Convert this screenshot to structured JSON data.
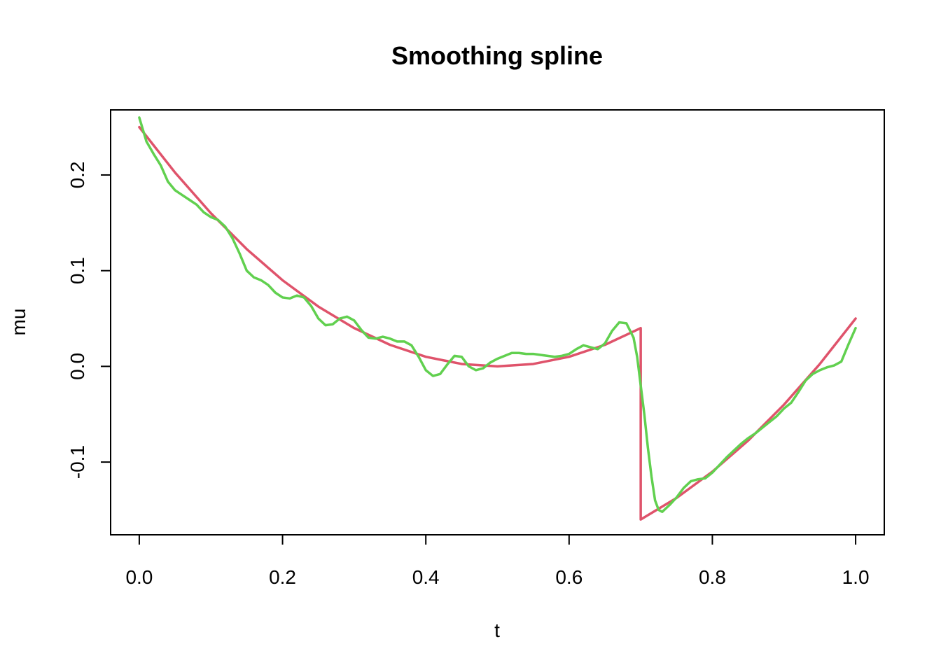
{
  "chart_data": {
    "type": "line",
    "title": "Smoothing spline",
    "xlabel": "t",
    "ylabel": "mu",
    "xlim": [
      -0.04,
      1.04
    ],
    "ylim": [
      -0.176,
      0.268
    ],
    "xticks": [
      0.0,
      0.2,
      0.4,
      0.6,
      0.8,
      1.0
    ],
    "xtick_labels": [
      "0.0",
      "0.2",
      "0.4",
      "0.6",
      "0.8",
      "1.0"
    ],
    "yticks": [
      -0.1,
      0.0,
      0.1,
      0.2
    ],
    "ytick_labels": [
      "-0.1",
      "0.0",
      "0.1",
      "0.2"
    ],
    "grid": false,
    "legend": false,
    "series": [
      {
        "color": "#DF536B",
        "x": [
          0.0,
          0.05,
          0.1,
          0.15,
          0.2,
          0.25,
          0.3,
          0.35,
          0.4,
          0.45,
          0.5,
          0.55,
          0.6,
          0.65,
          0.7,
          0.7,
          0.75,
          0.8,
          0.85,
          0.9,
          0.95,
          1.0
        ],
        "y": [
          0.25,
          0.2025,
          0.16,
          0.1225,
          0.09,
          0.0625,
          0.04,
          0.0225,
          0.01,
          0.0025,
          0.0,
          0.0025,
          0.01,
          0.0225,
          0.04,
          -0.16,
          -0.1375,
          -0.11,
          -0.0775,
          -0.04,
          0.0025,
          0.05
        ]
      },
      {
        "color": "#61D04F",
        "x": [
          0.0,
          0.01,
          0.02,
          0.03,
          0.04,
          0.05,
          0.06,
          0.07,
          0.08,
          0.09,
          0.1,
          0.11,
          0.12,
          0.13,
          0.14,
          0.15,
          0.16,
          0.17,
          0.18,
          0.19,
          0.2,
          0.21,
          0.22,
          0.23,
          0.24,
          0.25,
          0.26,
          0.27,
          0.28,
          0.29,
          0.3,
          0.31,
          0.32,
          0.33,
          0.34,
          0.35,
          0.36,
          0.37,
          0.38,
          0.39,
          0.4,
          0.41,
          0.42,
          0.43,
          0.44,
          0.45,
          0.46,
          0.47,
          0.48,
          0.49,
          0.5,
          0.51,
          0.52,
          0.53,
          0.54,
          0.55,
          0.56,
          0.57,
          0.58,
          0.59,
          0.6,
          0.61,
          0.62,
          0.63,
          0.64,
          0.65,
          0.66,
          0.67,
          0.68,
          0.69,
          0.695,
          0.7,
          0.705,
          0.71,
          0.715,
          0.72,
          0.725,
          0.73,
          0.74,
          0.75,
          0.76,
          0.77,
          0.78,
          0.79,
          0.8,
          0.81,
          0.82,
          0.83,
          0.84,
          0.85,
          0.86,
          0.87,
          0.88,
          0.89,
          0.9,
          0.91,
          0.92,
          0.93,
          0.94,
          0.95,
          0.96,
          0.97,
          0.98,
          0.99,
          1.0
        ],
        "y": [
          0.26,
          0.235,
          0.222,
          0.21,
          0.193,
          0.184,
          0.179,
          0.174,
          0.169,
          0.161,
          0.156,
          0.153,
          0.146,
          0.134,
          0.118,
          0.1,
          0.093,
          0.09,
          0.085,
          0.077,
          0.072,
          0.071,
          0.074,
          0.072,
          0.063,
          0.05,
          0.043,
          0.044,
          0.05,
          0.052,
          0.048,
          0.038,
          0.03,
          0.029,
          0.031,
          0.029,
          0.026,
          0.026,
          0.022,
          0.01,
          -0.004,
          -0.01,
          -0.008,
          0.002,
          0.011,
          0.01,
          0.0,
          -0.004,
          -0.002,
          0.004,
          0.008,
          0.011,
          0.014,
          0.014,
          0.013,
          0.013,
          0.012,
          0.011,
          0.01,
          0.011,
          0.013,
          0.018,
          0.022,
          0.02,
          0.018,
          0.024,
          0.037,
          0.046,
          0.045,
          0.03,
          0.01,
          -0.02,
          -0.05,
          -0.085,
          -0.115,
          -0.14,
          -0.15,
          -0.152,
          -0.145,
          -0.137,
          -0.127,
          -0.12,
          -0.118,
          -0.117,
          -0.111,
          -0.103,
          -0.095,
          -0.088,
          -0.081,
          -0.075,
          -0.07,
          -0.064,
          -0.058,
          -0.052,
          -0.044,
          -0.038,
          -0.027,
          -0.015,
          -0.008,
          -0.004,
          -0.001,
          0.001,
          0.005,
          0.023,
          0.04
        ]
      }
    ]
  }
}
